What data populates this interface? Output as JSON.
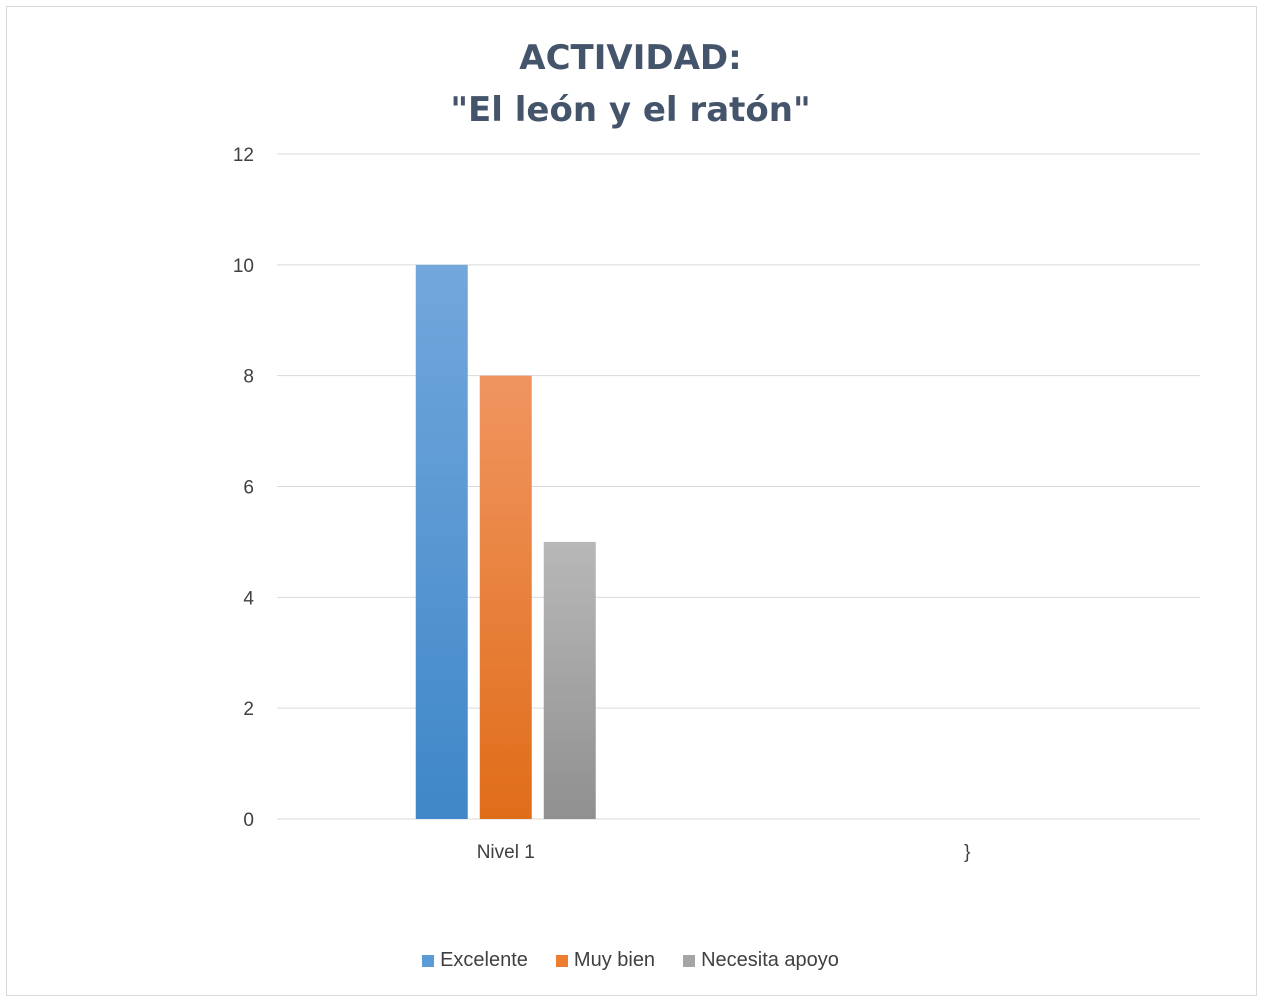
{
  "chart_data": {
    "type": "bar",
    "title_lines": [
      "ACTIVIDAD:",
      "\"El león y el ratón\""
    ],
    "categories": [
      "Nivel 1",
      "}"
    ],
    "series": [
      {
        "name": "Excelente",
        "values": [
          10,
          null
        ],
        "color": "#5b9bd5"
      },
      {
        "name": "Muy bien",
        "values": [
          8,
          null
        ],
        "color": "#ed7d31"
      },
      {
        "name": "Necesita apoyo",
        "values": [
          5,
          null
        ],
        "color": "#a5a5a5"
      }
    ],
    "ylim": [
      0,
      12
    ],
    "yticks": [
      "0",
      "2",
      "4",
      "6",
      "8",
      "10",
      "12"
    ],
    "grid": true,
    "legend_position": "bottom",
    "xlabel": "",
    "ylabel": ""
  }
}
